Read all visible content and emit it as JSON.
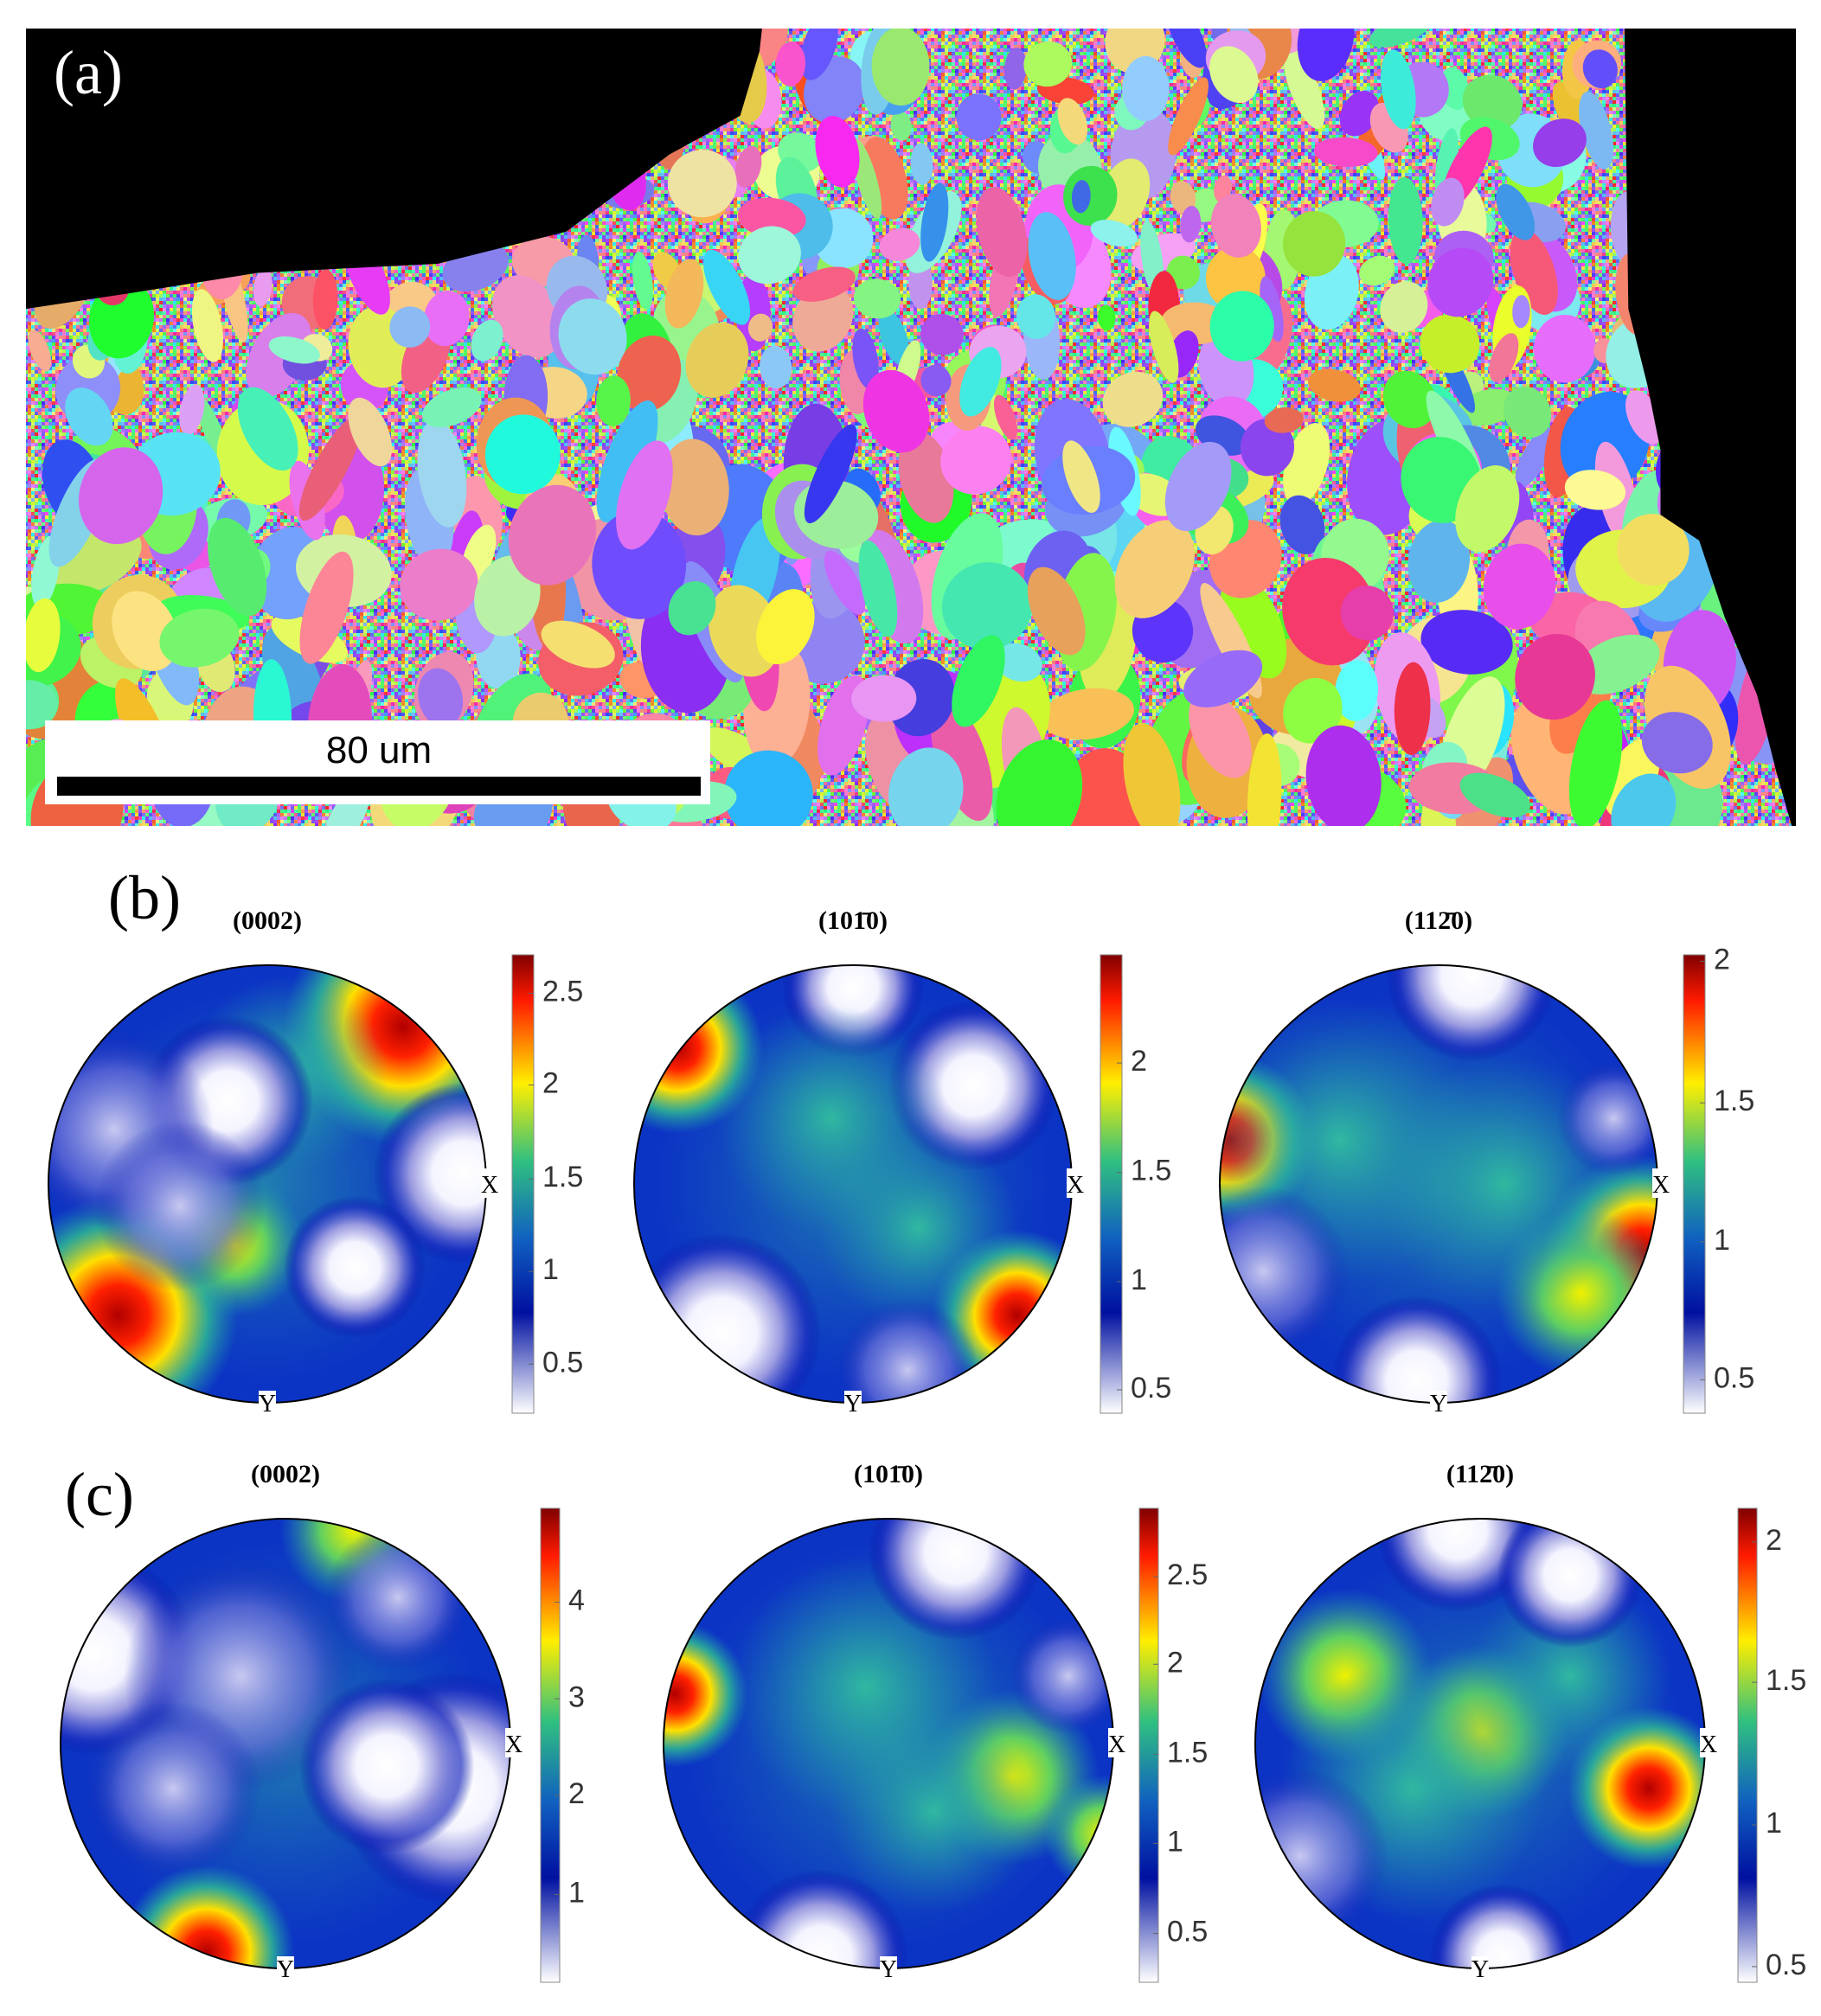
{
  "panel_a": {
    "label": "(a)",
    "scale_bar": "80 um"
  },
  "panel_b": {
    "label": "(b)",
    "figures": [
      {
        "title": "(0002)",
        "x_axis": "X",
        "y_axis": "Y",
        "colorbar_ticks": [
          "2.5",
          "2",
          "1.5",
          "1",
          "0.5"
        ]
      },
      {
        "title": "(101̄0)",
        "x_axis": "X",
        "y_axis": "Y",
        "colorbar_ticks": [
          "2",
          "1.5",
          "1",
          "0.5"
        ]
      },
      {
        "title": "(112̄0)",
        "x_axis": "X",
        "y_axis": "Y",
        "colorbar_ticks": [
          "2",
          "1.5",
          "1",
          "0.5"
        ]
      }
    ]
  },
  "panel_c": {
    "label": "(c)",
    "figures": [
      {
        "title": "(0002)",
        "x_axis": "X",
        "y_axis": "Y",
        "colorbar_ticks": [
          "4",
          "3",
          "2",
          "1"
        ]
      },
      {
        "title": "(101̄0)",
        "x_axis": "X",
        "y_axis": "Y",
        "colorbar_ticks": [
          "2.5",
          "2",
          "1.5",
          "1",
          "0.5"
        ]
      },
      {
        "title": "(112̄0)",
        "x_axis": "X",
        "y_axis": "Y",
        "colorbar_ticks": [
          "2",
          "1.5",
          "1",
          "0.5"
        ]
      }
    ]
  }
}
